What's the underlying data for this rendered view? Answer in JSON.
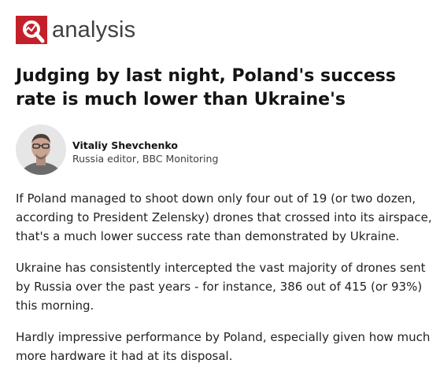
{
  "header": {
    "label": "analysis"
  },
  "headline": "Judging by last night, Poland's success rate is much lower than Ukraine's",
  "author": {
    "name": "Vitaliy Shevchenko",
    "role": "Russia editor, BBC Monitoring"
  },
  "paragraphs": [
    "If Poland managed to shoot down only four out of 19 (or two dozen, according to President Zelensky) drones that crossed into its airspace, that's a much lower success rate than demonstrated by Ukraine.",
    "Ukraine has consistently intercepted the vast majority of drones sent by Russia over the past years - for instance, 386 out of 415 (or 93%) this morning.",
    "Hardly impressive performance by Poland, especially given how much more hardware it had at its disposal."
  ]
}
